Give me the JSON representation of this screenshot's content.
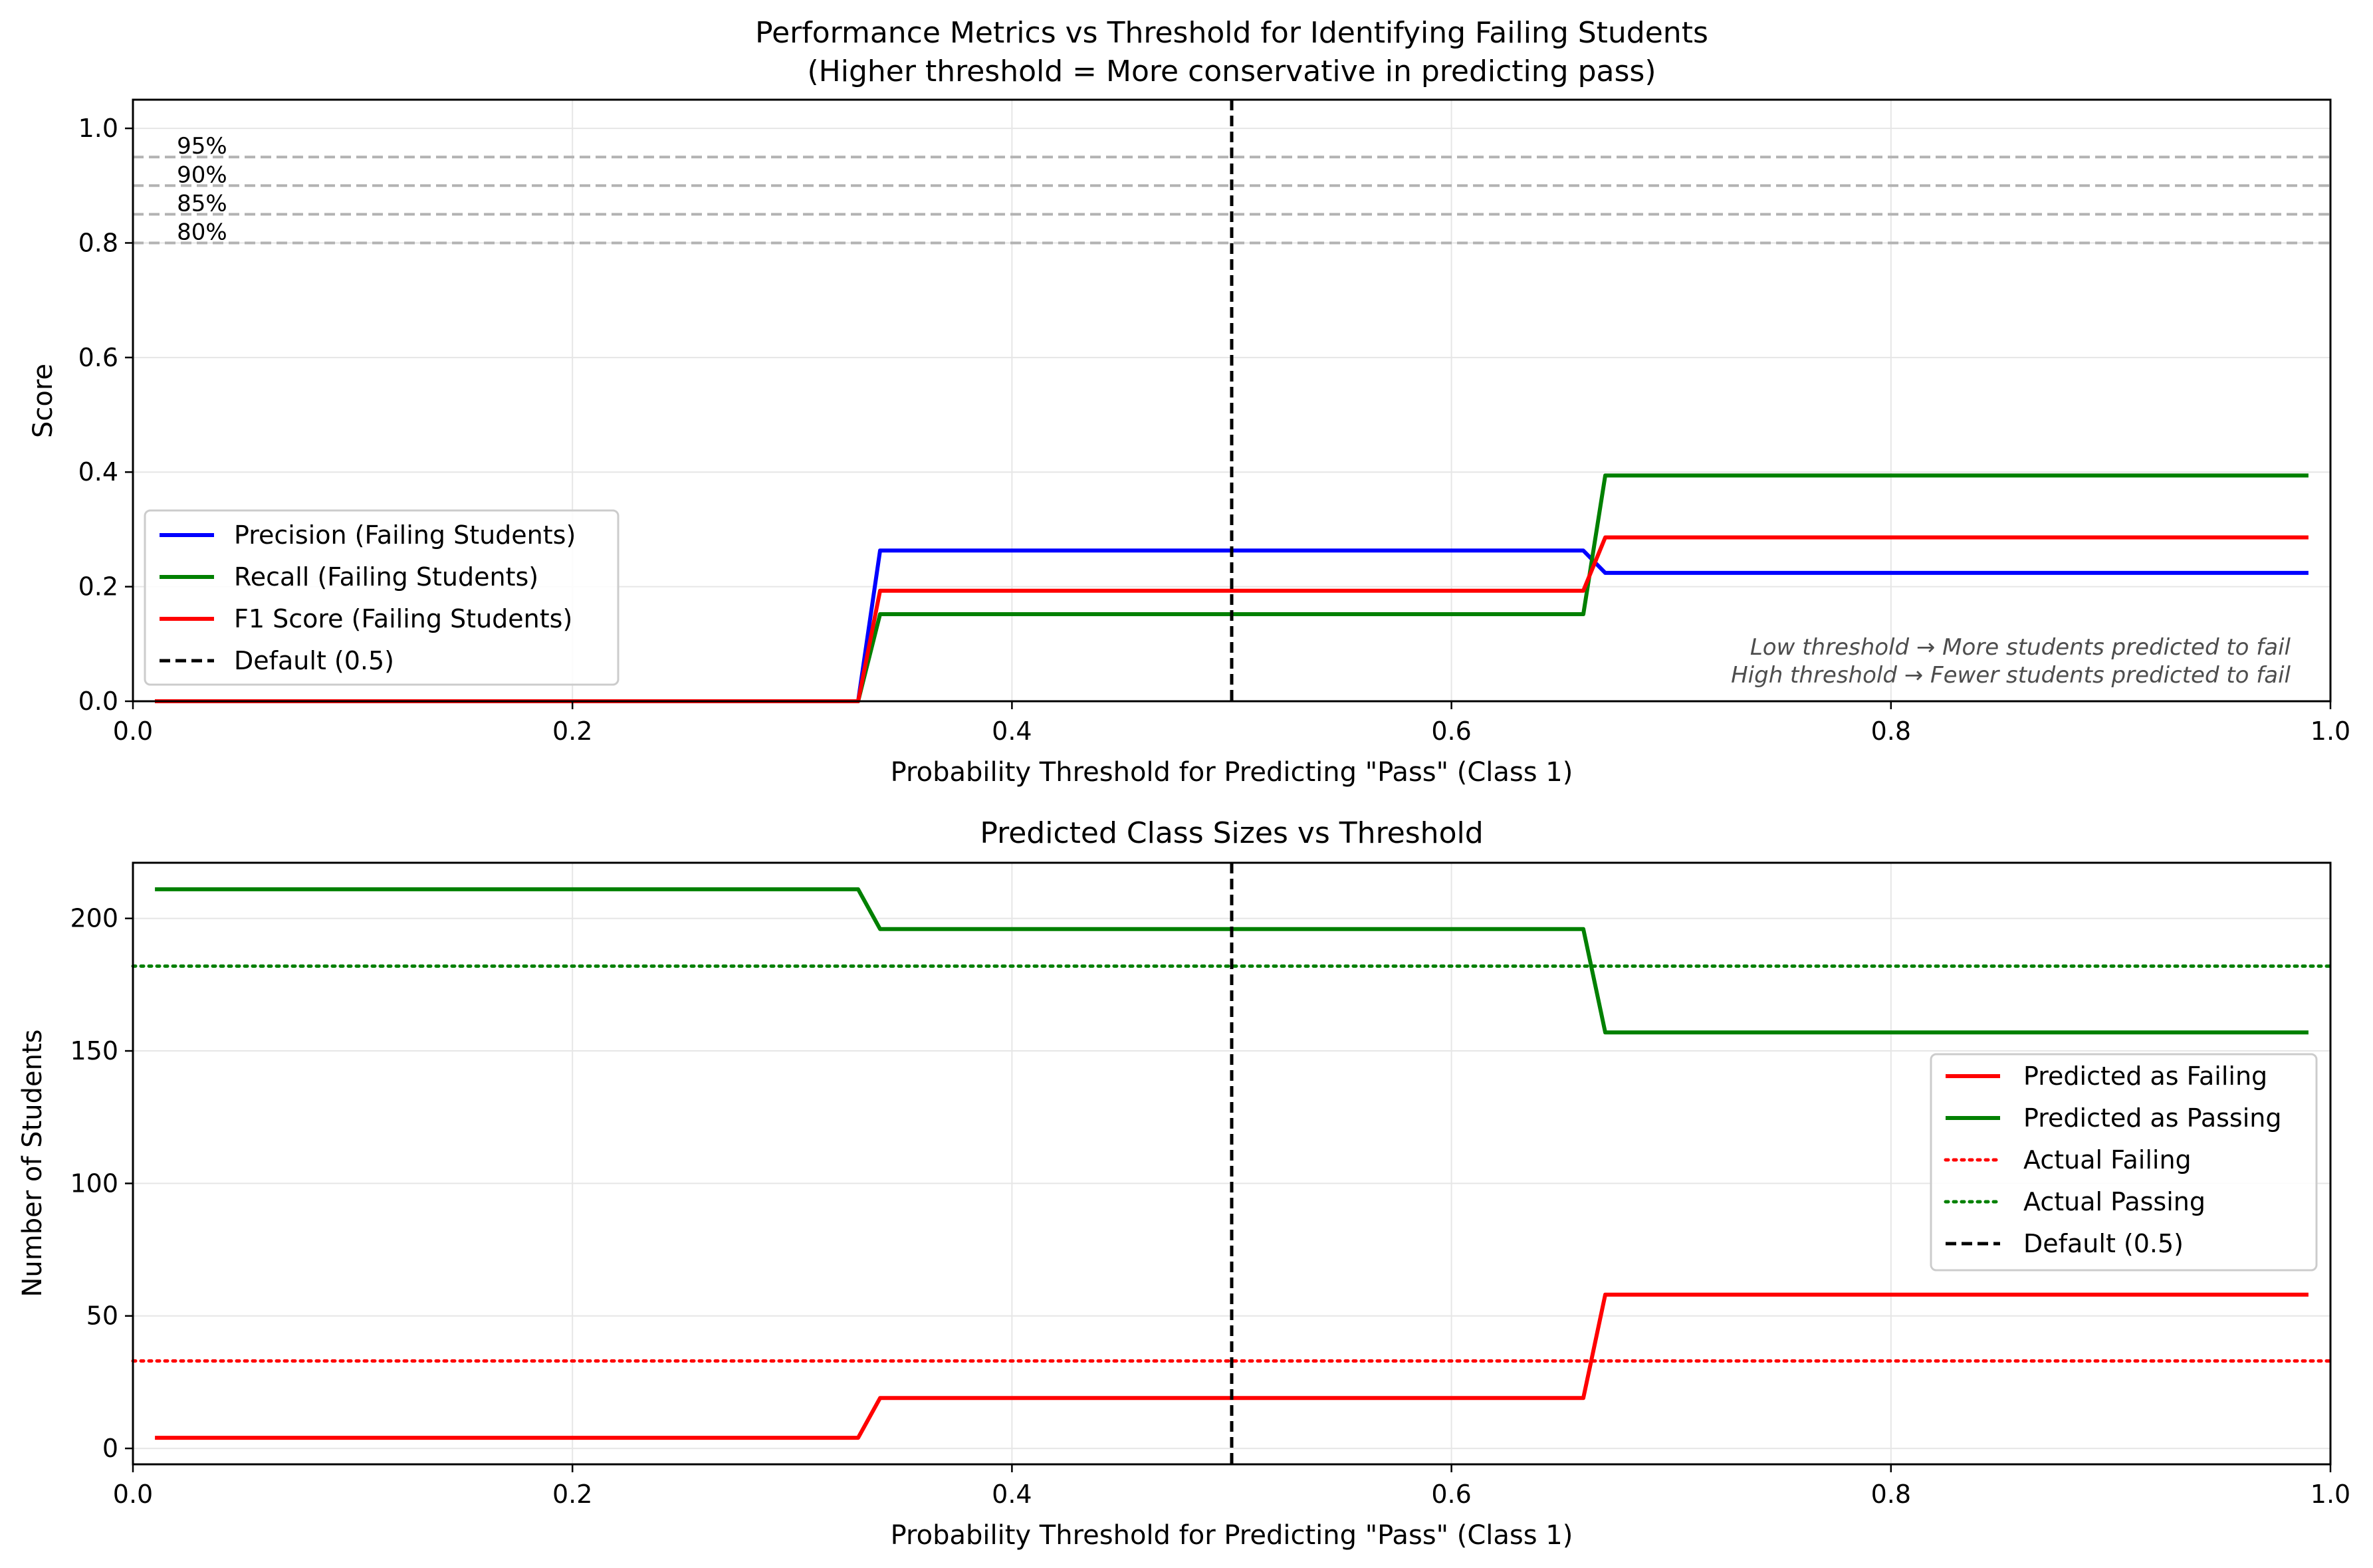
{
  "chart_data": [
    {
      "type": "line",
      "title": "Performance Metrics vs Threshold for Identifying Failing Students",
      "subtitle": "(Higher threshold = More conservative in predicting pass)",
      "xlabel": "Probability Threshold for Predicting \"Pass\" (Class 1)",
      "ylabel": "Score",
      "xlim": [
        0.0,
        1.0
      ],
      "ylim": [
        0.0,
        1.05
      ],
      "xticks": [
        0.0,
        0.2,
        0.4,
        0.6,
        0.8,
        1.0
      ],
      "xtick_labels": [
        "0.0",
        "0.2",
        "0.4",
        "0.6",
        "0.8",
        "1.0"
      ],
      "yticks": [
        0.0,
        0.2,
        0.4,
        0.6,
        0.8,
        1.0
      ],
      "ytick_labels": [
        "0.0",
        "0.2",
        "0.4",
        "0.6",
        "0.8",
        "1.0"
      ],
      "grid": true,
      "legend_position": "lower-left",
      "series": [
        {
          "name": "Precision (Failing Students)",
          "color": "#0000ff",
          "style": "solid",
          "x": [
            0.01,
            0.33,
            0.34,
            0.66,
            0.67,
            0.99
          ],
          "y": [
            0.0,
            0.0,
            0.263,
            0.263,
            0.224,
            0.224
          ]
        },
        {
          "name": "Recall (Failing Students)",
          "color": "#008000",
          "style": "solid",
          "x": [
            0.01,
            0.33,
            0.34,
            0.66,
            0.67,
            0.99
          ],
          "y": [
            0.0,
            0.0,
            0.152,
            0.152,
            0.394,
            0.394
          ]
        },
        {
          "name": "F1 Score (Failing Students)",
          "color": "#ff0000",
          "style": "solid",
          "x": [
            0.01,
            0.33,
            0.34,
            0.66,
            0.67,
            0.99
          ],
          "y": [
            0.0,
            0.0,
            0.193,
            0.193,
            0.286,
            0.286
          ]
        },
        {
          "name": "Default (0.5)",
          "color": "#000000",
          "style": "dashed",
          "vline": 0.5
        }
      ],
      "reference_lines": [
        {
          "y": 0.95,
          "label": "95%",
          "color": "#b3b3b3"
        },
        {
          "y": 0.9,
          "label": "90%",
          "color": "#b3b3b3"
        },
        {
          "y": 0.85,
          "label": "85%",
          "color": "#b3b3b3"
        },
        {
          "y": 0.8,
          "label": "80%",
          "color": "#b3b3b3"
        }
      ],
      "annotations": [
        "Low threshold → More students predicted to fail",
        "High threshold → Fewer students predicted to fail"
      ]
    },
    {
      "type": "line",
      "title": "Predicted Class Sizes vs Threshold",
      "xlabel": "Probability Threshold for Predicting \"Pass\" (Class 1)",
      "ylabel": "Number of Students",
      "xlim": [
        0.0,
        1.0
      ],
      "ylim": [
        -6,
        221
      ],
      "xticks": [
        0.0,
        0.2,
        0.4,
        0.6,
        0.8,
        1.0
      ],
      "xtick_labels": [
        "0.0",
        "0.2",
        "0.4",
        "0.6",
        "0.8",
        "1.0"
      ],
      "yticks": [
        0,
        50,
        100,
        150,
        200
      ],
      "ytick_labels": [
        "0",
        "50",
        "100",
        "150",
        "200"
      ],
      "grid": true,
      "legend_position": "center-right",
      "series": [
        {
          "name": "Predicted as Failing",
          "color": "#ff0000",
          "style": "solid",
          "x": [
            0.01,
            0.33,
            0.34,
            0.66,
            0.67,
            0.99
          ],
          "y": [
            4,
            4,
            19,
            19,
            58,
            58
          ]
        },
        {
          "name": "Predicted as Passing",
          "color": "#008000",
          "style": "solid",
          "x": [
            0.01,
            0.33,
            0.34,
            0.66,
            0.67,
            0.99
          ],
          "y": [
            211,
            211,
            196,
            196,
            157,
            157
          ]
        },
        {
          "name": "Actual Failing",
          "color": "#ff0000",
          "style": "dotted",
          "hline": 33
        },
        {
          "name": "Actual Passing",
          "color": "#008000",
          "style": "dotted",
          "hline": 182
        },
        {
          "name": "Default (0.5)",
          "color": "#000000",
          "style": "dashed",
          "vline": 0.5
        }
      ]
    }
  ]
}
